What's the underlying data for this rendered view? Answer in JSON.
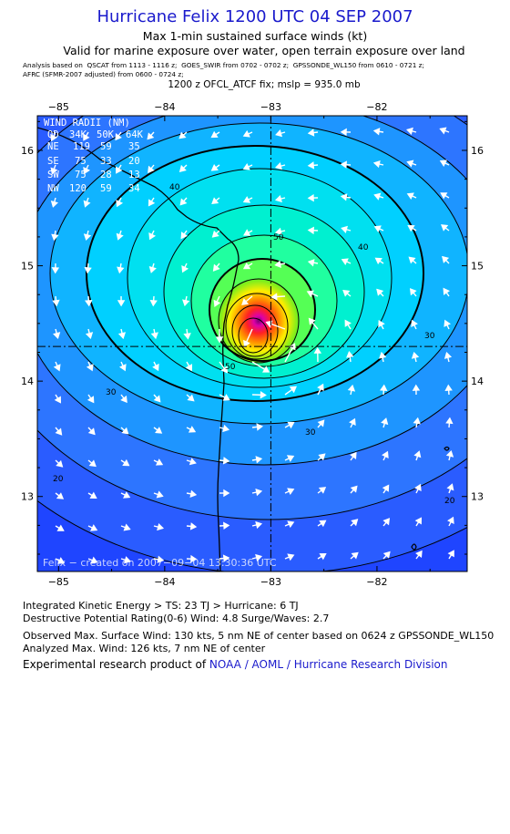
{
  "header": {
    "title": "Hurricane Felix 1200 UTC 04 SEP 2007",
    "subtitle1": "Max 1-min sustained surface winds (kt)",
    "subtitle2": "Valid for marine exposure over water, open terrain exposure over land",
    "analysis_line1": "Analysis based on  QSCAT from 1113 - 1116 z;  GOES_SWIR from 0702 - 0702 z;  GPSSONDE_WL150 from 0610 - 0721 z;",
    "analysis_line2": "AFRC (SFMR-2007 adjusted) from 0600 - 0724 z;",
    "fix_line": "1200 z OFCL_ATCF fix; mslp = 935.0 mb"
  },
  "map": {
    "lon_labels": [
      "−85",
      "−84",
      "−83",
      "−82"
    ],
    "lat_labels": [
      "16",
      "15",
      "14",
      "13"
    ],
    "lon_ticks": [
      -85,
      -84,
      -83,
      -82
    ],
    "lat_ticks": [
      16,
      15,
      14,
      13
    ],
    "extent": {
      "lon_min": -85.2,
      "lon_max": -81.15,
      "lat_max": 16.3,
      "lat_min": 12.35
    },
    "center": {
      "lon": -83.0,
      "lat": 14.3
    },
    "contour_labels": [
      "20",
      "30",
      "30",
      "40",
      "40",
      "50",
      "20",
      "30",
      "50"
    ],
    "credit": "Felix − created on 2007−09−04  13:30:36 UTC",
    "colors": {
      "frame": "#000000",
      "outer": "#1f45ff",
      "ts_ring": "#00c8ff",
      "hurricane": "#1affb0",
      "core_green": "#33dd33",
      "core_yellow": "#ffee00",
      "core_orange": "#ff8800",
      "core_red": "#ff2222",
      "core_magenta": "#dd00aa"
    }
  },
  "wind_radii": {
    "title": "WIND RADII (NM)",
    "header": [
      "QD",
      "34K",
      "50K",
      "64K"
    ],
    "rows": [
      [
        "NE",
        "119",
        "59",
        "35"
      ],
      [
        "SE",
        "75",
        "33",
        "20"
      ],
      [
        "SW",
        "75",
        "28",
        "13"
      ],
      [
        "NW",
        "120",
        "59",
        "34"
      ]
    ]
  },
  "footer": {
    "ike": "Integrated Kinetic Energy > TS: 23 TJ   > Hurricane: 6 TJ",
    "dpr": "Destructive Potential Rating(0-6)   Wind: 4.8 Surge/Waves: 2.7",
    "observed": "Observed Max. Surface Wind: 130 kts, 5 nm NE of center based on 0624 z GPSSONDE_WL150",
    "analyzed": "Analyzed Max. Wind: 126 kts, 7 nm NE of center",
    "product_prefix": "Experimental research product of ",
    "product_link": "NOAA / AOML / Hurricane Research Division"
  }
}
